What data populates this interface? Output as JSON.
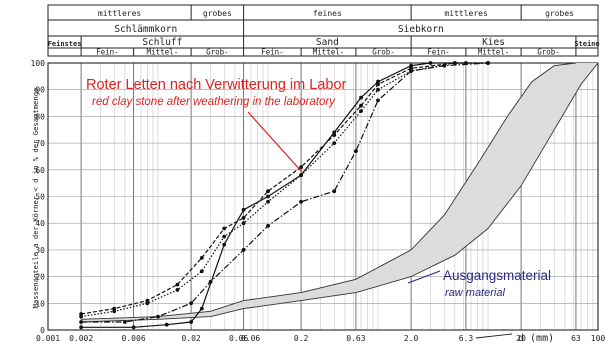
{
  "chart_data": {
    "type": "line",
    "x_scale": "log",
    "xlim": [
      0.001,
      100
    ],
    "ylim": [
      0,
      100
    ],
    "grid": true,
    "ylabel": "Massenanteile a der Körner < d in % der Gesamtmenge",
    "xlabel": "d (mm)",
    "x_ticks": [
      "0.001",
      "0.002",
      "0.006",
      "0.02",
      "0.06",
      "0.06",
      "0.2",
      "0.63",
      "2.0",
      "6.3",
      "20",
      "63",
      "100"
    ],
    "y_ticks": [
      "0",
      "10",
      "20",
      "30",
      "40",
      "50",
      "60",
      "70",
      "80",
      "90",
      "100"
    ],
    "header": {
      "row1": [
        "mittleres",
        "grobes",
        "feines",
        "mittleres",
        "grobes"
      ],
      "row2": [
        "Schlämmkorn",
        "Siebkorn"
      ],
      "row3": [
        "Feinstes",
        "Schluff",
        "Sand",
        "Kies",
        "Steine"
      ],
      "row4": [
        "Fein-",
        "Mittel-",
        "Grob-",
        "Fein-",
        "Mittel-",
        "Grob-",
        "Fein-",
        "Mittel-",
        "Grob-"
      ]
    },
    "annotations": {
      "weathered_de": "Roter Letten nach Verwitterung im Labor",
      "weathered_en": "red clay stone after weathering in the laboratory",
      "raw_de": "Ausgangsmaterial",
      "raw_en": "raw material"
    },
    "colors": {
      "weathered": "#dd2222",
      "raw": "#2a2a8a",
      "band_fill": "#dcdcdc"
    },
    "series": [
      {
        "style": "solid",
        "x": [
          0.002,
          0.006,
          0.012,
          0.02,
          0.025,
          0.04,
          0.06,
          0.1,
          0.2,
          0.4,
          0.7,
          1.0,
          2.0,
          3.0,
          6.3
        ],
        "y": [
          1,
          1,
          2,
          3,
          8,
          32,
          45,
          50,
          58,
          74,
          87,
          93,
          99,
          100,
          100
        ]
      },
      {
        "style": "dash-dot",
        "x": [
          0.002,
          0.005,
          0.01,
          0.02,
          0.03,
          0.06,
          0.1,
          0.2,
          0.4,
          0.63,
          1.0,
          2.0,
          4.0,
          10.0
        ],
        "y": [
          3,
          3,
          5,
          10,
          18,
          30,
          39,
          48,
          52,
          67,
          86,
          97,
          99,
          100
        ]
      },
      {
        "style": "dashed",
        "x": [
          0.002,
          0.004,
          0.008,
          0.015,
          0.025,
          0.04,
          0.06,
          0.1,
          0.2,
          0.4,
          0.7,
          1.0,
          2.0,
          5.0,
          10.0
        ],
        "y": [
          6,
          8,
          11,
          17,
          27,
          38,
          42,
          52,
          61,
          73,
          84,
          92,
          98,
          100,
          100
        ]
      },
      {
        "style": "dotted",
        "x": [
          0.002,
          0.004,
          0.008,
          0.015,
          0.025,
          0.04,
          0.06,
          0.1,
          0.2,
          0.4,
          0.7,
          1.0,
          2.0,
          5.0,
          10.0
        ],
        "y": [
          5,
          7,
          10,
          15,
          22,
          35,
          40,
          48,
          58,
          70,
          82,
          90,
          97,
          100,
          100
        ]
      }
    ],
    "band": {
      "upper": {
        "x": [
          0.002,
          0.01,
          0.03,
          0.06,
          0.2,
          0.63,
          2.0,
          4.0,
          8.0,
          15.0,
          25.0,
          40.0,
          63.0
        ],
        "y": [
          4,
          5,
          7,
          11,
          14,
          19,
          30,
          43,
          62,
          80,
          93,
          99,
          100
        ]
      },
      "lower": {
        "x": [
          0.002,
          0.01,
          0.03,
          0.06,
          0.2,
          0.63,
          2.0,
          5.0,
          10.0,
          20.0,
          40.0,
          70.0,
          100.0
        ],
        "y": [
          3,
          4,
          5,
          8,
          11,
          14,
          20,
          28,
          38,
          54,
          75,
          92,
          100
        ]
      }
    }
  }
}
